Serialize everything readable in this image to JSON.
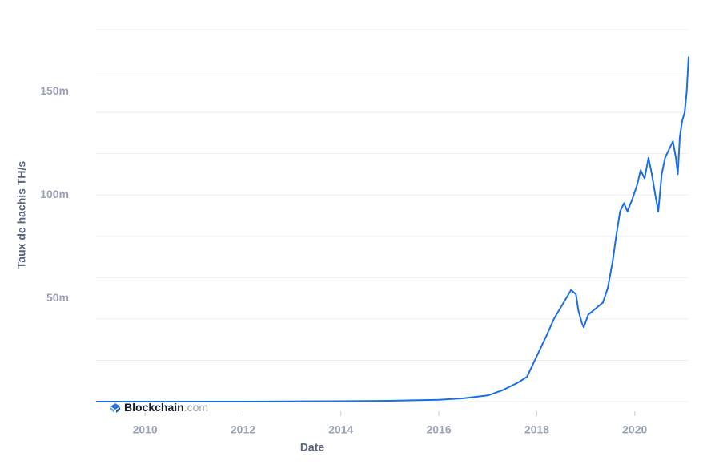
{
  "chart_data": {
    "type": "line",
    "y_axis_label": "Taux de hachis TH/s",
    "x_axis_label": "Date",
    "brand": "Blockchain",
    "brand_suffix": ".com",
    "xlim": [
      2009.0,
      2021.1
    ],
    "xticks": [
      2010,
      2012,
      2014,
      2016,
      2018,
      2020
    ],
    "ylim": [
      0,
      180
    ],
    "yticks": [
      {
        "value": 50,
        "label": "50m"
      },
      {
        "value": 100,
        "label": "100m"
      },
      {
        "value": 150,
        "label": "150m"
      }
    ],
    "grid_values": [
      0,
      20,
      40,
      60,
      80,
      100,
      120,
      140,
      160,
      180
    ],
    "grid": true,
    "series": [
      {
        "color": "#1a6fe6",
        "x": [
          2009.0,
          2012.0,
          2014.0,
          2015.0,
          2016.0,
          2016.5,
          2017.0,
          2017.3,
          2017.6,
          2017.8,
          2018.0,
          2018.2,
          2018.35,
          2018.5,
          2018.6,
          2018.7,
          2018.8,
          2018.85,
          2018.92,
          2018.96,
          2019.05,
          2019.2,
          2019.35,
          2019.45,
          2019.55,
          2019.62,
          2019.7,
          2019.78,
          2019.85,
          2019.95,
          2020.05,
          2020.12,
          2020.2,
          2020.28,
          2020.35,
          2020.42,
          2020.48,
          2020.55,
          2020.62,
          2020.7,
          2020.78,
          2020.84,
          2020.88,
          2020.92,
          2020.97,
          2021.02,
          2021.06,
          2021.1
        ],
        "values": [
          0,
          0.01,
          0.2,
          0.4,
          0.9,
          1.6,
          3,
          5.5,
          9,
          12,
          22,
          32,
          40,
          46,
          50,
          54,
          52,
          44,
          38,
          36,
          42,
          45,
          48,
          55,
          68,
          80,
          92,
          96,
          92,
          98,
          105,
          112,
          108,
          118,
          110,
          100,
          92,
          110,
          118,
          122,
          126,
          118,
          110,
          128,
          136,
          140,
          150,
          167
        ]
      }
    ]
  }
}
